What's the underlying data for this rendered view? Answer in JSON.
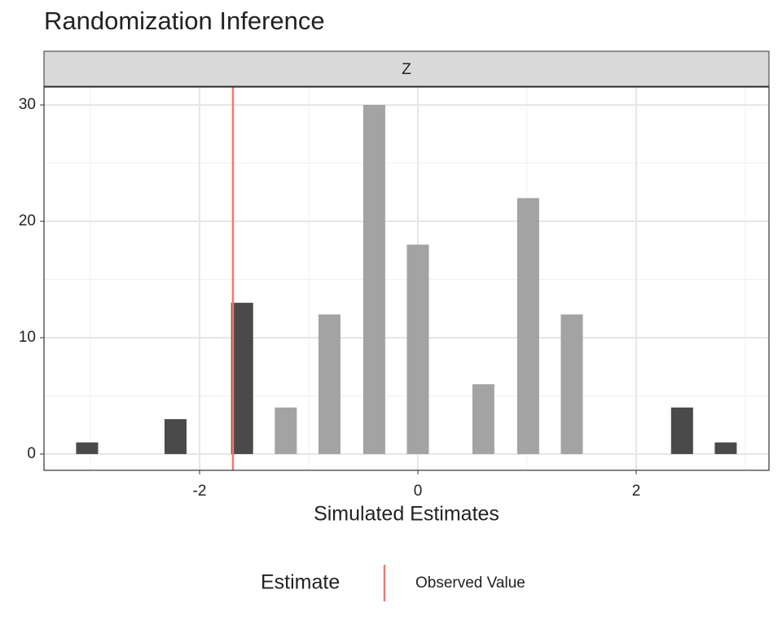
{
  "chart_data": {
    "type": "bar",
    "title": "Randomization Inference",
    "facet_label": "Z",
    "x_label": "Simulated Estimates",
    "x": [
      -3.03,
      -2.22,
      -1.61,
      -1.21,
      -0.81,
      -0.4,
      0,
      0.6,
      1.01,
      1.41,
      2.42,
      2.82
    ],
    "values": [
      1,
      3,
      13,
      4,
      12,
      30,
      18,
      6,
      22,
      12,
      4,
      1
    ],
    "colors": [
      "#4a4a4a",
      "#4a4a4a",
      "#4a4a4a",
      "#a3a3a3",
      "#a3a3a3",
      "#a3a3a3",
      "#a3a3a3",
      "#a3a3a3",
      "#a3a3a3",
      "#a3a3a3",
      "#4a4a4a",
      "#4a4a4a"
    ],
    "xlim": [
      -3.425,
      3.216
    ],
    "xticks": [
      -2,
      0,
      2
    ],
    "x_minor_ticks": [
      -3,
      -1,
      1,
      3
    ],
    "ylim": [
      -1.4,
      31.54
    ],
    "yticks": [
      0,
      10,
      20,
      30
    ],
    "y_minor_ticks": [
      5,
      15,
      25
    ],
    "grid": true,
    "vline": {
      "name": "Observed Value",
      "value": -1.694,
      "color": "#f8766d"
    },
    "legend_title": "Estimate",
    "legend_position": "bottom"
  }
}
